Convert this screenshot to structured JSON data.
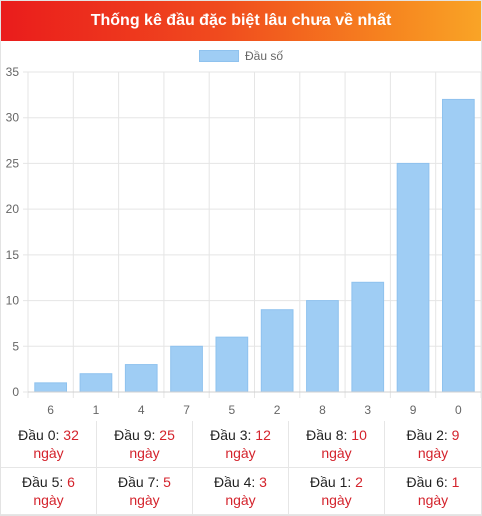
{
  "header": {
    "title": "Thống kê đầu đặc biệt lâu chưa về nhất"
  },
  "chart_data": {
    "type": "bar",
    "categories": [
      "6",
      "1",
      "4",
      "7",
      "5",
      "2",
      "8",
      "3",
      "9",
      "0"
    ],
    "series": [
      {
        "name": "Đầu số",
        "values": [
          1,
          2,
          3,
          5,
          6,
          9,
          10,
          12,
          25,
          32
        ]
      }
    ],
    "ylim": [
      0,
      35
    ],
    "yticks": [
      0,
      5,
      10,
      15,
      20,
      25,
      30,
      35
    ],
    "grid": true,
    "legend": "top-center",
    "bar_color": "#9fcdf4"
  },
  "stats": [
    {
      "label": "Đầu 0:",
      "value": "32",
      "unit": "ngày"
    },
    {
      "label": "Đầu 9:",
      "value": "25",
      "unit": "ngày"
    },
    {
      "label": "Đầu 3:",
      "value": "12",
      "unit": "ngày"
    },
    {
      "label": "Đầu 8:",
      "value": "10",
      "unit": "ngày"
    },
    {
      "label": "Đầu 2:",
      "value": "9",
      "unit": "ngày"
    },
    {
      "label": "Đầu 5:",
      "value": "6",
      "unit": "ngày"
    },
    {
      "label": "Đầu 7:",
      "value": "5",
      "unit": "ngày"
    },
    {
      "label": "Đầu 4:",
      "value": "3",
      "unit": "ngày"
    },
    {
      "label": "Đầu 1:",
      "value": "2",
      "unit": "ngày"
    },
    {
      "label": "Đầu 6:",
      "value": "1",
      "unit": "ngày"
    }
  ],
  "colors": {
    "accent_red": "#d4232c",
    "header_start": "#ea1c1c",
    "header_end": "#f9a426"
  }
}
